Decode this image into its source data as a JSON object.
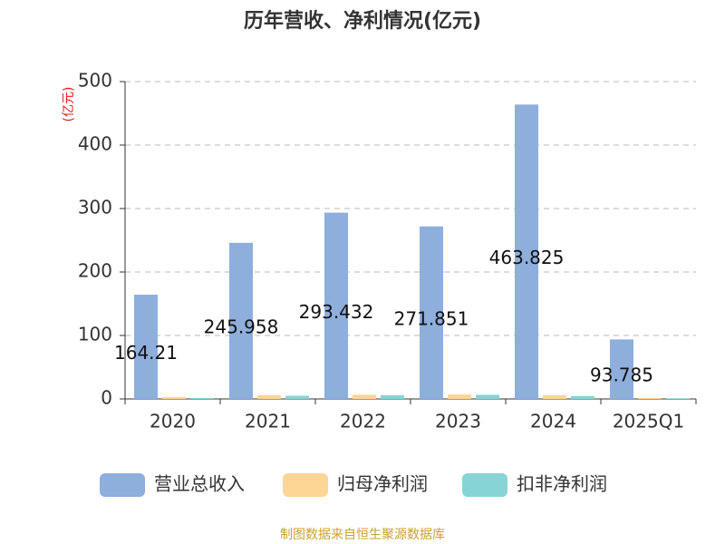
{
  "chart_data": {
    "type": "bar",
    "title": "历年营收、净利情况(亿元)",
    "y_unit": "(亿元)",
    "categories": [
      "2020",
      "2021",
      "2022",
      "2023",
      "2024",
      "2025Q1"
    ],
    "series": [
      {
        "name": "营业总收入",
        "color": "#8eaedc",
        "values": [
          164.21,
          245.958,
          293.432,
          271.851,
          463.825,
          93.785
        ]
      },
      {
        "name": "归母净利润",
        "color": "#fdd595",
        "values": [
          3,
          6,
          6.5,
          7,
          6,
          1.5
        ]
      },
      {
        "name": "扣非净利润",
        "color": "#86d4d6",
        "values": [
          1.5,
          5,
          6,
          6.5,
          4.5,
          1
        ]
      }
    ],
    "ylim": [
      0,
      500
    ],
    "yticks": [
      0,
      100,
      200,
      300,
      400,
      500
    ],
    "grid": true,
    "source": "制图数据来自恒生聚源数据库"
  }
}
